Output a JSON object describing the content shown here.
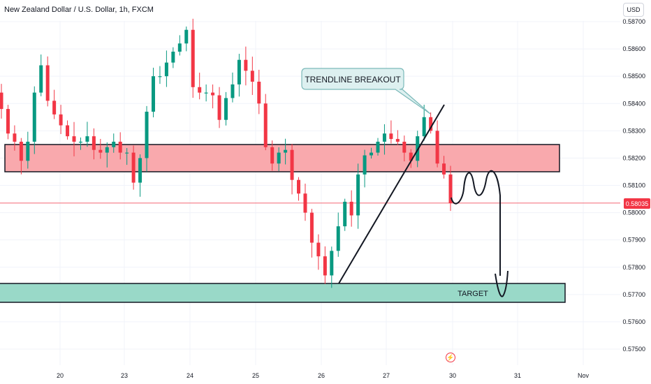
{
  "header": {
    "title": "New Zealand Dollar / U.S. Dollar, 1h, FXCM",
    "currency": "USD"
  },
  "current_price": "0.58035",
  "event_icon": "lightning-icon",
  "colors": {
    "up": "#089981",
    "down": "#f23645",
    "resistance_fill": "#f9a9ad",
    "target_fill": "#99d9c8",
    "callout_fill": "#ddf0f0",
    "callout_stroke": "#7bb9b9",
    "price_line": "#f23645",
    "grid": "#f0f3fa",
    "axis_text": "#131722"
  },
  "annotations": {
    "callout": "TRENDLINE BREAKOUT",
    "target": "TARGET"
  },
  "chart_data": {
    "type": "candlestick",
    "title": "New Zealand Dollar / U.S. Dollar, 1h, FXCM",
    "x_axis_labels": [
      "20",
      "23",
      "24",
      "25",
      "26",
      "27",
      "30",
      "31",
      "Nov"
    ],
    "y_axis_labels": [
      "0.58700",
      "0.58600",
      "0.58500",
      "0.58400",
      "0.58300",
      "0.58200",
      "0.58100",
      "0.58000",
      "0.57900",
      "0.57800",
      "0.57700",
      "0.57600",
      "0.57500"
    ],
    "ylim": [
      0.5744,
      0.5874
    ],
    "last_price": 0.58035,
    "resistance_zone": [
      0.5815,
      0.5825
    ],
    "target_zone": [
      0.5767,
      0.5774
    ],
    "closes": [
      0.5838,
      0.5829,
      0.5826,
      0.5819,
      0.5826,
      0.5844,
      0.5854,
      0.5841,
      0.5836,
      0.5832,
      0.5828,
      0.5826,
      0.5826,
      0.5828,
      0.5823,
      0.5822,
      0.5824,
      0.5826,
      0.5822,
      0.5822,
      0.5811,
      0.582,
      0.5837,
      0.585,
      0.585,
      0.5855,
      0.5859,
      0.5862,
      0.5867,
      0.5846,
      0.5844,
      0.5844,
      0.5843,
      0.5834,
      0.5842,
      0.5847,
      0.5856,
      0.5852,
      0.5848,
      0.584,
      0.5824,
      0.5818,
      0.5822,
      0.5823,
      0.5812,
      0.5807,
      0.58,
      0.5789,
      0.5784,
      0.5777,
      0.5786,
      0.5795,
      0.5804,
      0.5799,
      0.5814,
      0.5821,
      0.5822,
      0.5826,
      0.5829,
      0.5827,
      0.5826,
      0.5822,
      0.5819,
      0.5828,
      0.5835,
      0.583,
      0.5818,
      0.5814,
      0.58035
    ],
    "series": [
      {
        "name": "",
        "description": "Hourly OHLC candles (approximate closes listed above)"
      }
    ]
  }
}
